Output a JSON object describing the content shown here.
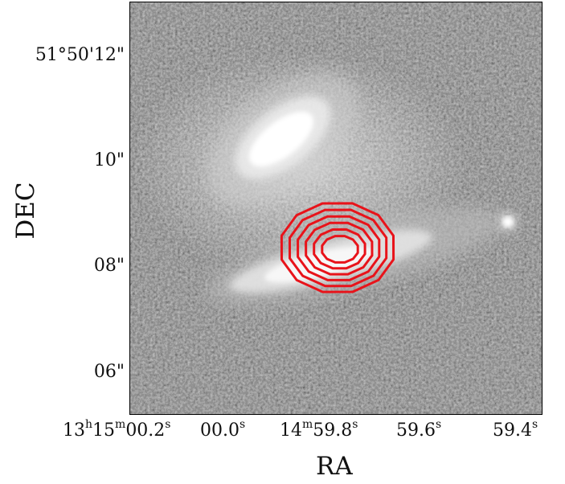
{
  "figure": {
    "xlabel": "RA",
    "ylabel": "DEC",
    "yticks": [
      "51°50'12\"",
      "10\"",
      "08\"",
      "06\""
    ],
    "xticks": [
      {
        "parts": [
          [
            "13",
            ""
          ],
          [
            "h",
            "sup"
          ],
          [
            "15",
            ""
          ],
          [
            "m",
            "sup"
          ],
          [
            "00.2",
            ""
          ],
          [
            "s",
            "sup"
          ]
        ]
      },
      {
        "parts": [
          [
            "00.0",
            ""
          ],
          [
            "s",
            "sup"
          ]
        ]
      },
      {
        "parts": [
          [
            "14",
            ""
          ],
          [
            "m",
            "sup"
          ],
          [
            "59.8",
            ""
          ],
          [
            "s",
            "sup"
          ]
        ]
      },
      {
        "parts": [
          [
            "59.6",
            ""
          ],
          [
            "s",
            "sup"
          ]
        ]
      },
      {
        "parts": [
          [
            "59.4",
            ""
          ],
          [
            "s",
            "sup"
          ]
        ]
      }
    ],
    "contour_color": "#e8131a",
    "contour_levels": 6,
    "colormap": "grayscale"
  }
}
